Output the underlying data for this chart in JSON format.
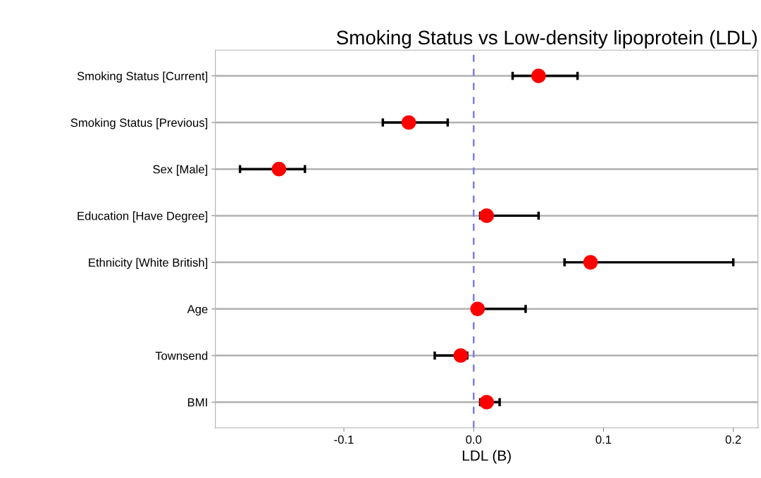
{
  "chart_data": {
    "type": "scatter",
    "orientation": "horizontal",
    "title": "Smoking Status vs Low-density lipoprotein (LDL)",
    "xlabel": "LDL (B)",
    "categories": [
      "Smoking Status [Current]",
      "Smoking Status [Previous]",
      "Sex [Male]",
      "Education [Have Degree]",
      "Ethnicity [White British]",
      "Age",
      "Townsend",
      "BMI"
    ],
    "values": [
      0.05,
      -0.05,
      -0.15,
      0.01,
      0.09,
      0.003,
      -0.01,
      0.01
    ],
    "errors": [
      [
        0.03,
        0.08
      ],
      [
        -0.07,
        -0.02
      ],
      [
        -0.18,
        -0.13
      ],
      [
        0.005,
        0.05
      ],
      [
        0.07,
        0.2
      ],
      [
        0.002,
        0.04
      ],
      [
        -0.03,
        -0.005
      ],
      [
        0.005,
        0.02
      ]
    ],
    "color": "#ff0000",
    "marker": "circle",
    "xlim": [
      -0.199,
      0.219
    ],
    "xticks": [
      -0.1,
      {
        "value": 0,
        "label": "0.0"
      },
      0.1,
      0.2
    ],
    "grid": "y",
    "ref_lines": [
      {
        "axis": "x",
        "value": 0,
        "color": "#7b7bf0",
        "line_style": "dashed"
      }
    ]
  }
}
